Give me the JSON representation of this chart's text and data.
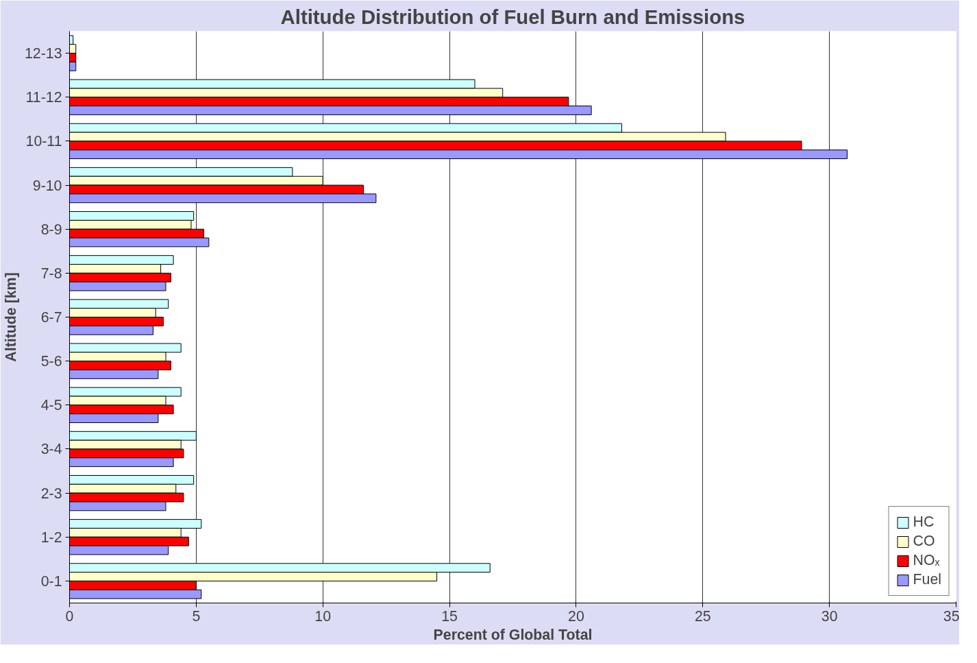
{
  "chart_data": {
    "type": "bar",
    "orientation": "horizontal",
    "title": "Altitude Distribution of Fuel Burn and Emissions",
    "xlabel": "Percent of Global Total",
    "ylabel": "Altitude [km]",
    "categories": [
      "12-13",
      "11-12",
      "10-11",
      "9-10",
      "8-9",
      "7-8",
      "6-7",
      "5-6",
      "4-5",
      "3-4",
      "2-3",
      "1-2",
      "0-1"
    ],
    "series": [
      {
        "name": "HC",
        "color": "#ccffff",
        "values": [
          0.14,
          16.0,
          21.8,
          8.8,
          4.9,
          4.1,
          3.9,
          4.4,
          4.4,
          5.0,
          4.9,
          5.2,
          16.6
        ]
      },
      {
        "name": "CO",
        "color": "#ffffcc",
        "values": [
          0.25,
          17.1,
          25.9,
          10.0,
          4.8,
          3.6,
          3.4,
          3.8,
          3.8,
          4.4,
          4.2,
          4.4,
          14.5
        ]
      },
      {
        "name": "NOₓ",
        "color": "#ff0000",
        "values": [
          0.25,
          19.7,
          28.9,
          11.6,
          5.3,
          4.0,
          3.7,
          4.0,
          4.1,
          4.5,
          4.5,
          4.7,
          5.0
        ]
      },
      {
        "name": "Fuel",
        "color": "#9999ff",
        "values": [
          0.25,
          20.6,
          30.7,
          12.1,
          5.5,
          3.8,
          3.3,
          3.5,
          3.5,
          4.1,
          3.8,
          3.9,
          5.2
        ]
      }
    ],
    "xlim": [
      0,
      35
    ],
    "xticks": [
      0,
      5,
      10,
      15,
      20,
      25,
      30,
      35
    ],
    "grid": "x",
    "legend": "bottom right"
  }
}
